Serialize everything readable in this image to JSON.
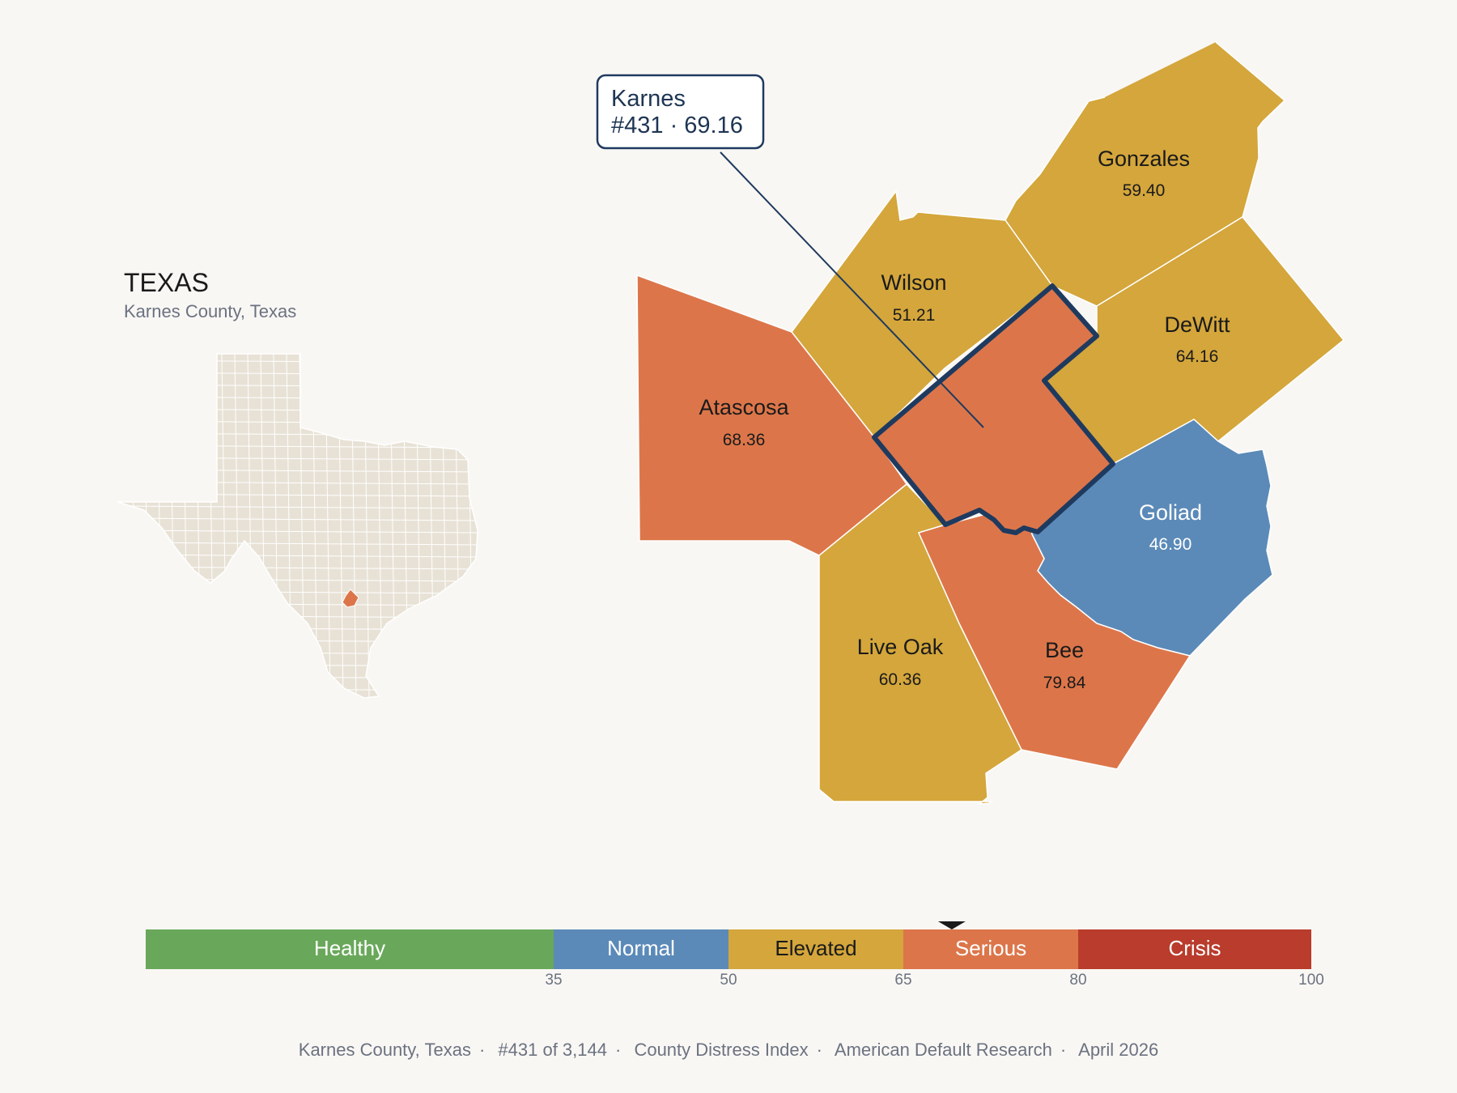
{
  "state": {
    "title": "TEXAS",
    "subtitle": "Karnes County, Texas"
  },
  "colors": {
    "healthy": "#69a85a",
    "normal": "#5b8ab8",
    "elevated": "#d4a63b",
    "serious": "#dc764a",
    "crisis": "#b93c2c",
    "outline": "#1f3a5f",
    "inset_fill": "#e8e2d6",
    "background": "#f9f7f4"
  },
  "highlight": {
    "name": "Karnes",
    "rank": "#431",
    "score": 69.16,
    "callout_line1": "Karnes",
    "callout_line2": "#431 · 69.16"
  },
  "counties": [
    {
      "name": "Gonzales",
      "value": "59.40",
      "band": "elevated"
    },
    {
      "name": "Wilson",
      "value": "51.21",
      "band": "elevated"
    },
    {
      "name": "DeWitt",
      "value": "64.16",
      "band": "elevated"
    },
    {
      "name": "Atascosa",
      "value": "68.36",
      "band": "serious"
    },
    {
      "name": "Goliad",
      "value": "46.90",
      "band": "normal"
    },
    {
      "name": "Live Oak",
      "value": "60.36",
      "band": "elevated"
    },
    {
      "name": "Bee",
      "value": "79.84",
      "band": "serious"
    },
    {
      "name": "Karnes",
      "value": "69.16",
      "band": "serious"
    }
  ],
  "legend": {
    "segments": [
      {
        "label": "Healthy",
        "band": "healthy"
      },
      {
        "label": "Normal",
        "band": "normal"
      },
      {
        "label": "Elevated",
        "band": "elevated"
      },
      {
        "label": "Serious",
        "band": "serious"
      },
      {
        "label": "Crisis",
        "band": "crisis"
      }
    ],
    "ticks": [
      "35",
      "50",
      "65",
      "80",
      "100"
    ],
    "marker_value": 69.16
  },
  "footer": {
    "items": [
      "Karnes County, Texas",
      "#431 of 3,144",
      "County Distress Index",
      "American Default Research",
      "April 2026"
    ]
  }
}
